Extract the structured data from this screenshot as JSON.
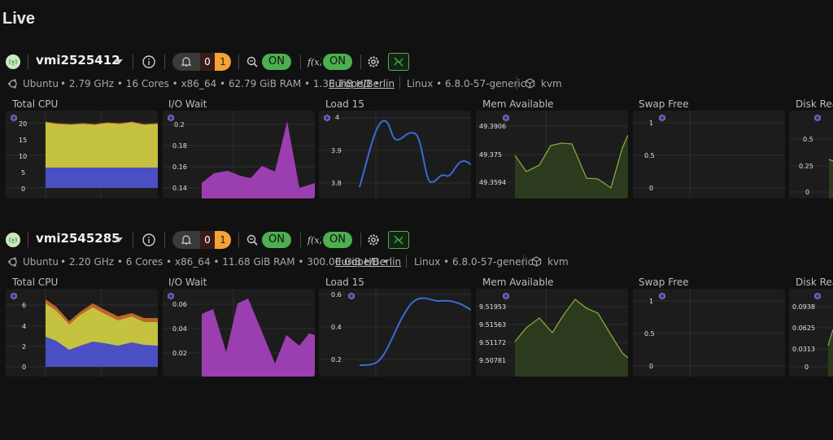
{
  "page": {
    "title": "Live"
  },
  "servers": [
    {
      "hostname": "vmi2525412",
      "alerts": {
        "critical": "0",
        "warning": "1"
      },
      "toggle1": "ON",
      "toggle2": "ON",
      "meta": {
        "os": "Ubuntu",
        "specs": "• 2.79 GHz • 16 Cores • x86_64 • 62.79 GiB RAM • 1.38 TiB HD •",
        "timezone": "Europe/Berlin",
        "kernel": "Linux • 6.8.0-57-generic",
        "virt": "kvm"
      },
      "metrics": {
        "cpu": {
          "label": "Total CPU",
          "ticks": [
            "20",
            "15",
            "10",
            "5",
            "0"
          ]
        },
        "iowait": {
          "label": "I/O Wait",
          "ticks": [
            "0.2",
            "0.18",
            "0.16",
            "0.14"
          ]
        },
        "load": {
          "label": "Load 15",
          "ticks": [
            "4",
            "3.9",
            "3.8"
          ]
        },
        "mem": {
          "label": "Mem Available",
          "ticks": [
            "49.3906",
            "49.375",
            "49.3594"
          ]
        },
        "swap": {
          "label": "Swap Free",
          "ticks": [
            "1",
            "0.5",
            "0"
          ]
        },
        "disk": {
          "label": "Disk Read",
          "ticks": [
            "0.5",
            "0.25",
            "0"
          ]
        }
      }
    },
    {
      "hostname": "vmi2545285",
      "alerts": {
        "critical": "0",
        "warning": "1"
      },
      "toggle1": "ON",
      "toggle2": "ON",
      "meta": {
        "os": "Ubuntu",
        "specs": "• 2.20 GHz • 6 Cores • x86_64 • 11.68 GiB RAM • 300.00 GiB HD •",
        "timezone": "Europe/Berlin",
        "kernel": "Linux • 6.8.0-57-generic",
        "virt": "kvm"
      },
      "metrics": {
        "cpu": {
          "label": "Total CPU",
          "ticks": [
            "6",
            "4",
            "2",
            "0"
          ]
        },
        "iowait": {
          "label": "I/O Wait",
          "ticks": [
            "0.06",
            "0.04",
            "0.02"
          ]
        },
        "load": {
          "label": "Load 15",
          "ticks": [
            "0.6",
            "0.4",
            "0.2"
          ]
        },
        "mem": {
          "label": "Mem Available",
          "ticks": [
            "9.51953",
            "9.51563",
            "9.51172",
            "9.50781"
          ]
        },
        "swap": {
          "label": "Swap Free",
          "ticks": [
            "1",
            "0.5",
            "0"
          ]
        },
        "disk": {
          "label": "Disk Read",
          "ticks": [
            "0.0938",
            "0.0625",
            "0.0313",
            "0"
          ]
        }
      }
    }
  ],
  "colors": {
    "cpu_user": "#c4c23f",
    "cpu_system": "#4a4fc4",
    "cpu_other": "#c0652a",
    "iowait": "#9b3fb0",
    "load": "#3a6ad6",
    "mem_fill": "#2c3a1e",
    "mem_line": "#86a83a",
    "swap": "#2a2a2a",
    "on_green": "#4caf50",
    "warning_orange": "#f5a334"
  }
}
